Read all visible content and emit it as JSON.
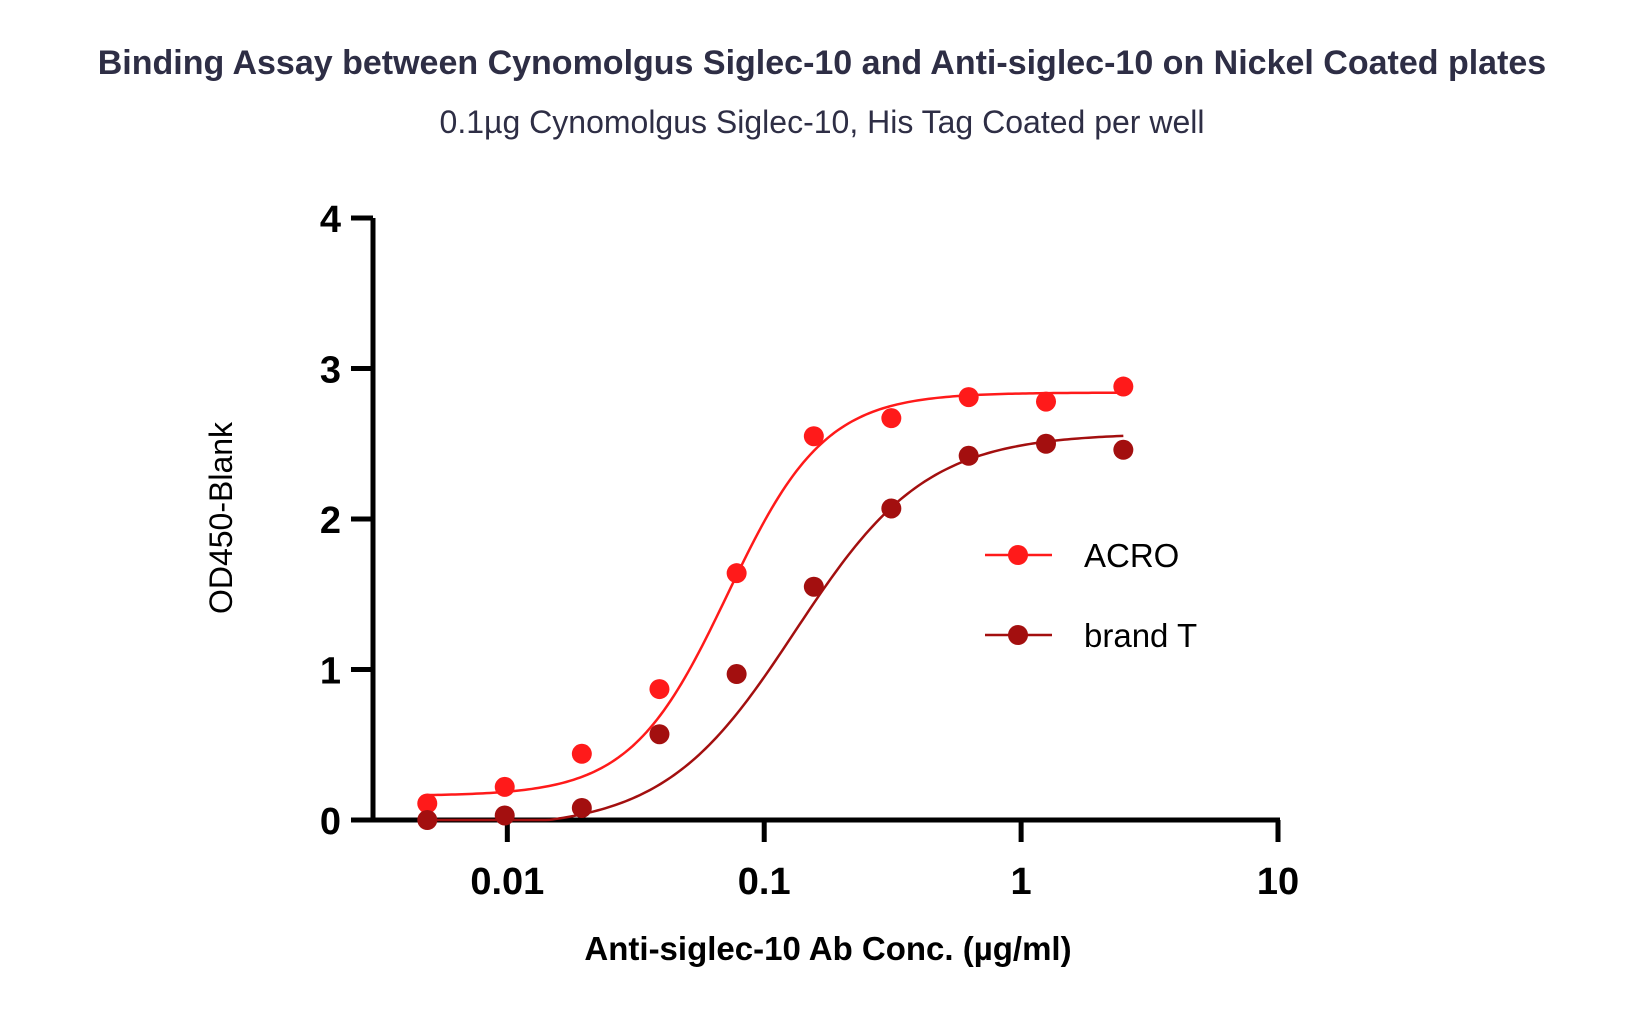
{
  "chart_data": {
    "type": "scatter",
    "title": "Binding  Assay between Cynomolgus Siglec-10 and Anti-siglec-10  on Nickel Coated plates",
    "subtitle": "0.1µg Cynomolgus Siglec-10, His Tag  Coated per well",
    "xlabel": "Anti-siglec-10 Ab Conc. (µg/ml)",
    "ylabel": "OD450-Blank",
    "xscale": "log",
    "xlim": [
      0.003,
      10
    ],
    "ylim": [
      0,
      4
    ],
    "xticks": [
      0.01,
      0.1,
      1,
      10
    ],
    "xtick_labels": [
      "0.01",
      "0.1",
      "1",
      "10"
    ],
    "yticks": [
      0,
      1,
      2,
      3,
      4
    ],
    "ytick_labels": [
      "0",
      "1",
      "2",
      "3",
      "4"
    ],
    "grid": false,
    "legend_position": "right-middle",
    "fit": "sigmoidal",
    "series": [
      {
        "name": "ACRO",
        "color": "#ff1a1a",
        "x": [
          0.00488,
          0.00977,
          0.0195,
          0.0391,
          0.0781,
          0.156,
          0.3125,
          0.625,
          1.25,
          2.5
        ],
        "y": [
          0.11,
          0.22,
          0.44,
          0.87,
          1.64,
          2.55,
          2.67,
          2.81,
          2.78,
          2.88
        ],
        "fit_params": {
          "bottom": 0.16,
          "top": 2.84,
          "ec50": 0.072,
          "hill": 2.3
        }
      },
      {
        "name": "brand T",
        "color": "#a30f0f",
        "x": [
          0.00488,
          0.00977,
          0.0195,
          0.0391,
          0.0781,
          0.156,
          0.3125,
          0.625,
          1.25,
          2.5
        ],
        "y": [
          0.0,
          0.03,
          0.08,
          0.57,
          0.97,
          1.55,
          2.07,
          2.42,
          2.5,
          2.46
        ],
        "fit_params": {
          "bottom": -0.06,
          "top": 2.57,
          "ec50": 0.132,
          "hill": 1.7
        }
      }
    ]
  }
}
